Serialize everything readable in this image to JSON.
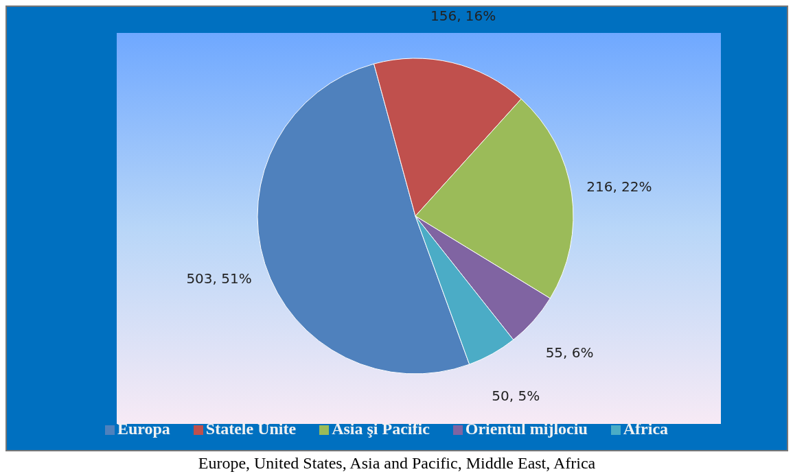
{
  "chart_data": {
    "type": "pie",
    "categories": [
      "Europa",
      "Statele Unite",
      "Asia şi Pacific",
      "Orientul mijlociu",
      "Africa"
    ],
    "values": [
      503,
      156,
      216,
      55,
      50
    ],
    "colors": [
      "#4f81bd",
      "#c0504d",
      "#9bbb59",
      "#8064a2",
      "#4bacc6"
    ],
    "value_labels": [
      "503, 51%",
      "156, 16%",
      "216, 22%",
      "55, 6%",
      "50, 5%"
    ],
    "legend": "bottom",
    "annotations": [
      "Europe, United States, Asia and Pacific, Middle East, Africa"
    ]
  }
}
